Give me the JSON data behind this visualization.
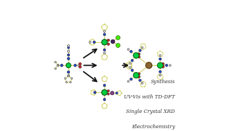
{
  "background_color": "#ffffff",
  "title": "",
  "text_lines": [
    "Synthesis",
    "UV-Vis with TD-DFT",
    "Single Crystal XRD",
    "Electrochemistry"
  ],
  "text_fontsize": 5.2,
  "text_style": "italic",
  "colors": {
    "green": "#00cc44",
    "blue": "#2244cc",
    "red": "#cc2222",
    "white_atom": "#dddddd",
    "bond": "#cccc66",
    "dark_purple": "#442266",
    "purple": "#884488",
    "lime": "#44ee00",
    "brown": "#886633",
    "green_edge": "#005500",
    "brown_edge": "#553300"
  }
}
